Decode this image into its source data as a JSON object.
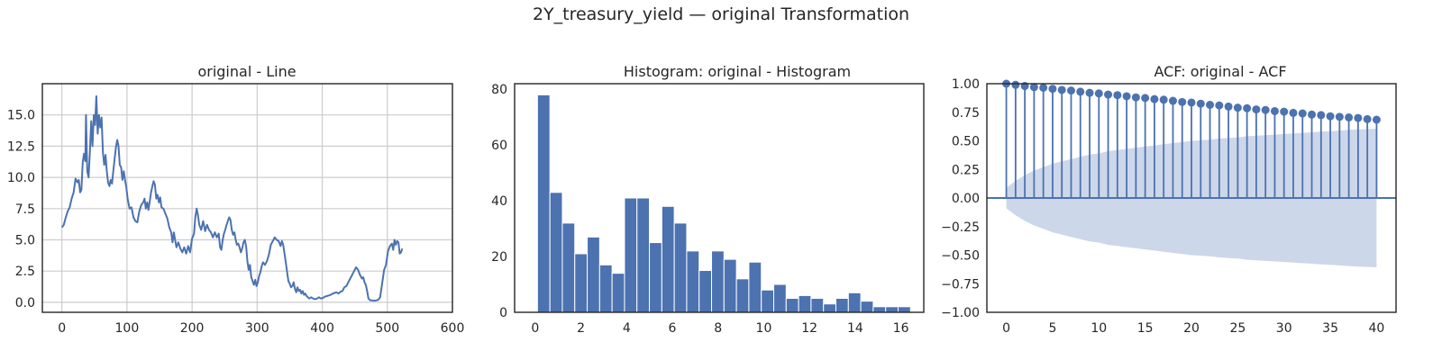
{
  "figure": {
    "title": "2Y_treasury_yield — original Transformation"
  },
  "colors": {
    "series": "#4c72b0",
    "confidence_band": "#cdd7ea",
    "grid": "#cccccc",
    "axes": "#262626",
    "background": "#ffffff"
  },
  "chart_data": [
    {
      "type": "line",
      "title": "original - Line",
      "xlabel": "",
      "ylabel": "",
      "xlim": [
        -30,
        600
      ],
      "ylim": [
        -0.8,
        17.5
      ],
      "xticks": [
        0,
        100,
        200,
        300,
        400,
        500,
        600
      ],
      "xtick_labels": [
        "0",
        "100",
        "200",
        "300",
        "400",
        "500",
        "600"
      ],
      "yticks": [
        0,
        2.5,
        5,
        7.5,
        10,
        12.5,
        15
      ],
      "ytick_labels": [
        "0.0",
        "2.5",
        "5.0",
        "7.5",
        "10.0",
        "12.5",
        "15.0"
      ],
      "grid": true,
      "series": [
        {
          "points": [
            [
              0,
              6.0
            ],
            [
              3,
              6.2
            ],
            [
              6,
              6.8
            ],
            [
              9,
              7.3
            ],
            [
              12,
              7.6
            ],
            [
              15,
              8.3
            ],
            [
              18,
              8.8
            ],
            [
              21,
              9.9
            ],
            [
              24,
              9.6
            ],
            [
              26,
              9.8
            ],
            [
              28,
              8.8
            ],
            [
              30,
              9.0
            ],
            [
              32,
              11.2
            ],
            [
              34,
              11.9
            ],
            [
              36,
              11.3
            ],
            [
              37,
              15.0
            ],
            [
              39,
              10.5
            ],
            [
              41,
              10.0
            ],
            [
              43,
              12.0
            ],
            [
              45,
              14.5
            ],
            [
              47,
              12.5
            ],
            [
              49,
              15.0
            ],
            [
              51,
              14.2
            ],
            [
              53,
              16.5
            ],
            [
              55,
              13.5
            ],
            [
              57,
              15.0
            ],
            [
              59,
              14.0
            ],
            [
              61,
              14.8
            ],
            [
              63,
              12.0
            ],
            [
              65,
              11.0
            ],
            [
              67,
              11.8
            ],
            [
              69,
              10.5
            ],
            [
              71,
              9.6
            ],
            [
              73,
              9.3
            ],
            [
              75,
              9.8
            ],
            [
              77,
              9.5
            ],
            [
              79,
              10.5
            ],
            [
              81,
              11.5
            ],
            [
              83,
              12.4
            ],
            [
              85,
              13.0
            ],
            [
              87,
              12.5
            ],
            [
              89,
              11.0
            ],
            [
              91,
              10.8
            ],
            [
              93,
              9.8
            ],
            [
              95,
              10.5
            ],
            [
              97,
              9.8
            ],
            [
              99,
              9.2
            ],
            [
              101,
              8.3
            ],
            [
              104,
              7.5
            ],
            [
              107,
              7.6
            ],
            [
              110,
              6.8
            ],
            [
              113,
              6.5
            ],
            [
              116,
              6.4
            ],
            [
              119,
              7.3
            ],
            [
              122,
              7.8
            ],
            [
              125,
              8.0
            ],
            [
              127,
              8.3
            ],
            [
              129,
              7.5
            ],
            [
              131,
              8.0
            ],
            [
              133,
              7.4
            ],
            [
              135,
              8.1
            ],
            [
              137,
              8.8
            ],
            [
              139,
              9.3
            ],
            [
              141,
              9.7
            ],
            [
              143,
              9.4
            ],
            [
              145,
              8.3
            ],
            [
              147,
              8.6
            ],
            [
              149,
              8.0
            ],
            [
              151,
              8.4
            ],
            [
              153,
              7.6
            ],
            [
              156,
              7.5
            ],
            [
              159,
              7.1
            ],
            [
              162,
              6.7
            ],
            [
              165,
              6.0
            ],
            [
              168,
              5.6
            ],
            [
              170,
              4.8
            ],
            [
              172,
              5.6
            ],
            [
              174,
              5.0
            ],
            [
              176,
              4.4
            ],
            [
              179,
              4.8
            ],
            [
              182,
              4.3
            ],
            [
              185,
              4.0
            ],
            [
              188,
              4.4
            ],
            [
              191,
              3.9
            ],
            [
              194,
              4.5
            ],
            [
              197,
              4.0
            ],
            [
              200,
              5.1
            ],
            [
              203,
              5.5
            ],
            [
              205,
              6.8
            ],
            [
              207,
              7.5
            ],
            [
              209,
              7.0
            ],
            [
              211,
              6.2
            ],
            [
              214,
              5.8
            ],
            [
              217,
              6.5
            ],
            [
              220,
              5.7
            ],
            [
              223,
              6.2
            ],
            [
              226,
              5.8
            ],
            [
              229,
              5.6
            ],
            [
              232,
              5.2
            ],
            [
              235,
              5.6
            ],
            [
              238,
              5.2
            ],
            [
              241,
              5.5
            ],
            [
              243,
              4.4
            ],
            [
              245,
              4.2
            ],
            [
              247,
              5.0
            ],
            [
              249,
              5.5
            ],
            [
              251,
              5.8
            ],
            [
              253,
              6.2
            ],
            [
              255,
              6.5
            ],
            [
              257,
              6.8
            ],
            [
              259,
              6.6
            ],
            [
              261,
              5.8
            ],
            [
              263,
              5.4
            ],
            [
              265,
              5.6
            ],
            [
              267,
              5.0
            ],
            [
              269,
              4.6
            ],
            [
              271,
              4.7
            ],
            [
              273,
              4.4
            ],
            [
              275,
              4.0
            ],
            [
              277,
              4.3
            ],
            [
              279,
              4.8
            ],
            [
              281,
              5.0
            ],
            [
              283,
              4.5
            ],
            [
              285,
              3.3
            ],
            [
              287,
              2.6
            ],
            [
              289,
              3.0
            ],
            [
              291,
              2.0
            ],
            [
              293,
              1.7
            ],
            [
              295,
              1.4
            ],
            [
              297,
              1.8
            ],
            [
              299,
              1.3
            ],
            [
              301,
              1.6
            ],
            [
              303,
              2.1
            ],
            [
              305,
              2.4
            ],
            [
              307,
              2.9
            ],
            [
              309,
              3.2
            ],
            [
              312,
              3.0
            ],
            [
              315,
              3.3
            ],
            [
              318,
              3.8
            ],
            [
              321,
              4.6
            ],
            [
              324,
              4.9
            ],
            [
              327,
              5.2
            ],
            [
              330,
              5.0
            ],
            [
              333,
              4.9
            ],
            [
              336,
              4.5
            ],
            [
              338,
              4.9
            ],
            [
              340,
              4.6
            ],
            [
              342,
              3.9
            ],
            [
              344,
              3.2
            ],
            [
              346,
              2.4
            ],
            [
              348,
              1.7
            ],
            [
              350,
              1.5
            ],
            [
              352,
              1.2
            ],
            [
              354,
              1.3
            ],
            [
              356,
              1.6
            ],
            [
              358,
              1.1
            ],
            [
              360,
              0.8
            ],
            [
              362,
              1.2
            ],
            [
              364,
              0.9
            ],
            [
              366,
              1.0
            ],
            [
              368,
              0.7
            ],
            [
              370,
              0.9
            ],
            [
              372,
              0.6
            ],
            [
              374,
              0.7
            ],
            [
              376,
              0.5
            ],
            [
              378,
              0.4
            ],
            [
              380,
              0.3
            ],
            [
              383,
              0.4
            ],
            [
              386,
              0.3
            ],
            [
              389,
              0.25
            ],
            [
              392,
              0.3
            ],
            [
              395,
              0.4
            ],
            [
              398,
              0.3
            ],
            [
              401,
              0.35
            ],
            [
              404,
              0.45
            ],
            [
              407,
              0.5
            ],
            [
              410,
              0.55
            ],
            [
              413,
              0.6
            ],
            [
              416,
              0.7
            ],
            [
              419,
              0.75
            ],
            [
              422,
              0.8
            ],
            [
              425,
              0.7
            ],
            [
              428,
              0.85
            ],
            [
              431,
              0.9
            ],
            [
              434,
              1.2
            ],
            [
              437,
              1.3
            ],
            [
              440,
              1.6
            ],
            [
              443,
              1.9
            ],
            [
              446,
              2.2
            ],
            [
              449,
              2.5
            ],
            [
              452,
              2.8
            ],
            [
              455,
              2.6
            ],
            [
              458,
              2.2
            ],
            [
              461,
              1.9
            ],
            [
              463,
              2.0
            ],
            [
              465,
              1.6
            ],
            [
              467,
              1.4
            ],
            [
              469,
              0.9
            ],
            [
              471,
              0.3
            ],
            [
              474,
              0.15
            ],
            [
              477,
              0.15
            ],
            [
              480,
              0.12
            ],
            [
              483,
              0.15
            ],
            [
              486,
              0.2
            ],
            [
              489,
              0.4
            ],
            [
              492,
              1.5
            ],
            [
              495,
              2.6
            ],
            [
              498,
              3.0
            ],
            [
              501,
              4.1
            ],
            [
              504,
              4.5
            ],
            [
              507,
              4.7
            ],
            [
              509,
              4.2
            ],
            [
              511,
              5.0
            ],
            [
              513,
              4.6
            ],
            [
              515,
              4.9
            ],
            [
              517,
              4.8
            ],
            [
              519,
              3.9
            ],
            [
              521,
              4.0
            ],
            [
              523,
              4.3
            ]
          ]
        }
      ]
    },
    {
      "type": "bar",
      "title": "Histogram: original - Histogram",
      "xlabel": "",
      "ylabel": "",
      "xlim": [
        -0.9,
        17.0
      ],
      "ylim": [
        0,
        82
      ],
      "xticks": [
        0,
        2,
        4,
        6,
        8,
        10,
        12,
        14,
        16
      ],
      "xtick_labels": [
        "0",
        "2",
        "4",
        "6",
        "8",
        "10",
        "12",
        "14",
        "16"
      ],
      "yticks": [
        0,
        20,
        40,
        60,
        80
      ],
      "ytick_labels": [
        "0",
        "20",
        "40",
        "60",
        "80"
      ],
      "grid": false,
      "bin_edges": [
        0.1,
        0.644,
        1.188,
        1.732,
        2.276,
        2.82,
        3.364,
        3.908,
        4.452,
        4.996,
        5.54,
        6.084,
        6.628,
        7.172,
        7.716,
        8.26,
        8.804,
        9.348,
        9.892,
        10.436,
        10.98,
        11.524,
        12.068,
        12.612,
        13.156,
        13.7,
        14.244,
        14.788,
        15.332,
        15.876,
        16.42
      ],
      "values": [
        78,
        43,
        32,
        21,
        27,
        17,
        14,
        41,
        41,
        25,
        38,
        32,
        22,
        15,
        22,
        19,
        12,
        18,
        8,
        10,
        5,
        6,
        5,
        3,
        5,
        7,
        4,
        2,
        2,
        2
      ]
    },
    {
      "type": "stem",
      "title": "ACF: original - ACF",
      "xlabel": "",
      "ylabel": "",
      "xlim": [
        -2.1,
        42.1
      ],
      "ylim": [
        -1.0,
        1.0
      ],
      "xticks": [
        0,
        5,
        10,
        15,
        20,
        25,
        30,
        35,
        40
      ],
      "xtick_labels": [
        "0",
        "5",
        "10",
        "15",
        "20",
        "25",
        "30",
        "35",
        "40"
      ],
      "yticks": [
        -1.0,
        -0.75,
        -0.5,
        -0.25,
        0.0,
        0.25,
        0.5,
        0.75,
        1.0
      ],
      "ytick_labels": [
        "−1.00",
        "−0.75",
        "−0.50",
        "−0.25",
        "0.00",
        "0.25",
        "0.50",
        "0.75",
        "1.00"
      ],
      "grid": false,
      "lags": [
        0,
        1,
        2,
        3,
        4,
        5,
        6,
        7,
        8,
        9,
        10,
        11,
        12,
        13,
        14,
        15,
        16,
        17,
        18,
        19,
        20,
        21,
        22,
        23,
        24,
        25,
        26,
        27,
        28,
        29,
        30,
        31,
        32,
        33,
        34,
        35,
        36,
        37,
        38,
        39,
        40
      ],
      "values": [
        1.0,
        0.99,
        0.98,
        0.97,
        0.965,
        0.955,
        0.945,
        0.94,
        0.93,
        0.92,
        0.915,
        0.905,
        0.9,
        0.89,
        0.88,
        0.875,
        0.865,
        0.86,
        0.85,
        0.84,
        0.835,
        0.825,
        0.815,
        0.81,
        0.8,
        0.79,
        0.785,
        0.775,
        0.77,
        0.76,
        0.755,
        0.745,
        0.74,
        0.73,
        0.725,
        0.715,
        0.71,
        0.705,
        0.7,
        0.69,
        0.685
      ],
      "confidence_upper": [
        0.09,
        0.15,
        0.2,
        0.24,
        0.27,
        0.3,
        0.32,
        0.34,
        0.36,
        0.38,
        0.39,
        0.41,
        0.42,
        0.43,
        0.44,
        0.45,
        0.46,
        0.47,
        0.48,
        0.49,
        0.5,
        0.505,
        0.51,
        0.52,
        0.525,
        0.53,
        0.54,
        0.545,
        0.55,
        0.555,
        0.56,
        0.565,
        0.57,
        0.575,
        0.58,
        0.585,
        0.59,
        0.595,
        0.6,
        0.603,
        0.606
      ]
    }
  ]
}
